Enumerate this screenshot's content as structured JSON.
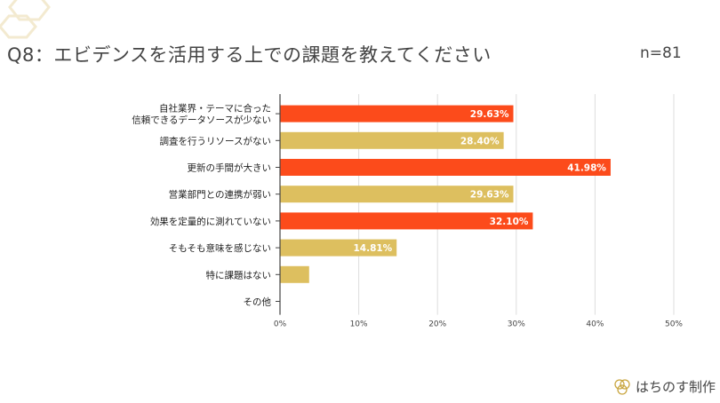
{
  "title": "Q8：エビデンスを活用する上での課題を教えてください",
  "sample_size": "n=81",
  "brand": "はちのす制作",
  "colors": {
    "orange": "#FC4B1B",
    "gold": "#DDBF5F",
    "grid": "#DDDDDD",
    "axis": "#444444"
  },
  "chart_data": {
    "type": "bar",
    "orientation": "horizontal",
    "categories": [
      [
        "自社業界・テーマに合った",
        "信頼できるデータソースが少ない"
      ],
      [
        "調査を行うリソースがない"
      ],
      [
        "更新の手間が大きい"
      ],
      [
        "営業部門との連携が弱い"
      ],
      [
        "効果を定量的に測れていない"
      ],
      [
        "そもそも意味を感じない"
      ],
      [
        "特に課題はない"
      ],
      [
        "その他"
      ]
    ],
    "values": [
      29.63,
      28.4,
      41.98,
      29.63,
      32.1,
      14.81,
      3.7,
      0
    ],
    "data_labels": [
      "29.63%",
      "28.40%",
      "41.98%",
      "29.63%",
      "32.10%",
      "14.81%",
      "",
      ""
    ],
    "bar_colors": [
      "orange",
      "gold",
      "orange",
      "gold",
      "orange",
      "gold",
      "gold",
      "gold"
    ],
    "xlim": [
      0,
      50
    ],
    "x_ticks": [
      "0%",
      "10%",
      "20%",
      "30%",
      "40%",
      "50%"
    ],
    "grid": true,
    "legend": "none"
  }
}
